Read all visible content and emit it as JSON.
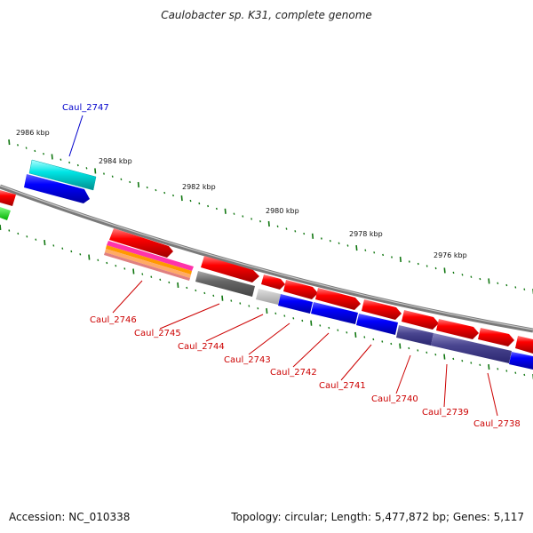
{
  "title": "Caulobacter sp. K31, complete genome",
  "footer": {
    "accession": "Accession: NC_010338",
    "summary": "Topology: circular; Length: 5,477,872 bp; Genes: 5,117"
  },
  "kbp_labels": [
    "2986 kbp",
    "2984 kbp",
    "2982 kbp",
    "2980 kbp",
    "2978 kbp",
    "2976 kbp"
  ],
  "gene_labels": {
    "caul_2747": "Caul_2747",
    "caul_2746": "Caul_2746",
    "caul_2745": "Caul_2745",
    "caul_2744": "Caul_2744",
    "caul_2743": "Caul_2743",
    "caul_2742": "Caul_2742",
    "caul_2741": "Caul_2741",
    "caul_2740": "Caul_2740",
    "caul_2739": "Caul_2739",
    "caul_2738": "Caul_2738"
  },
  "colors": {
    "forward_cds": "#ff0000",
    "reverse_cds": "#0000ff",
    "highlight": "#00e5e5",
    "label_red": "#cc0000",
    "label_blue": "#0000cc",
    "tick": "#117711",
    "backbone": "#888888"
  }
}
